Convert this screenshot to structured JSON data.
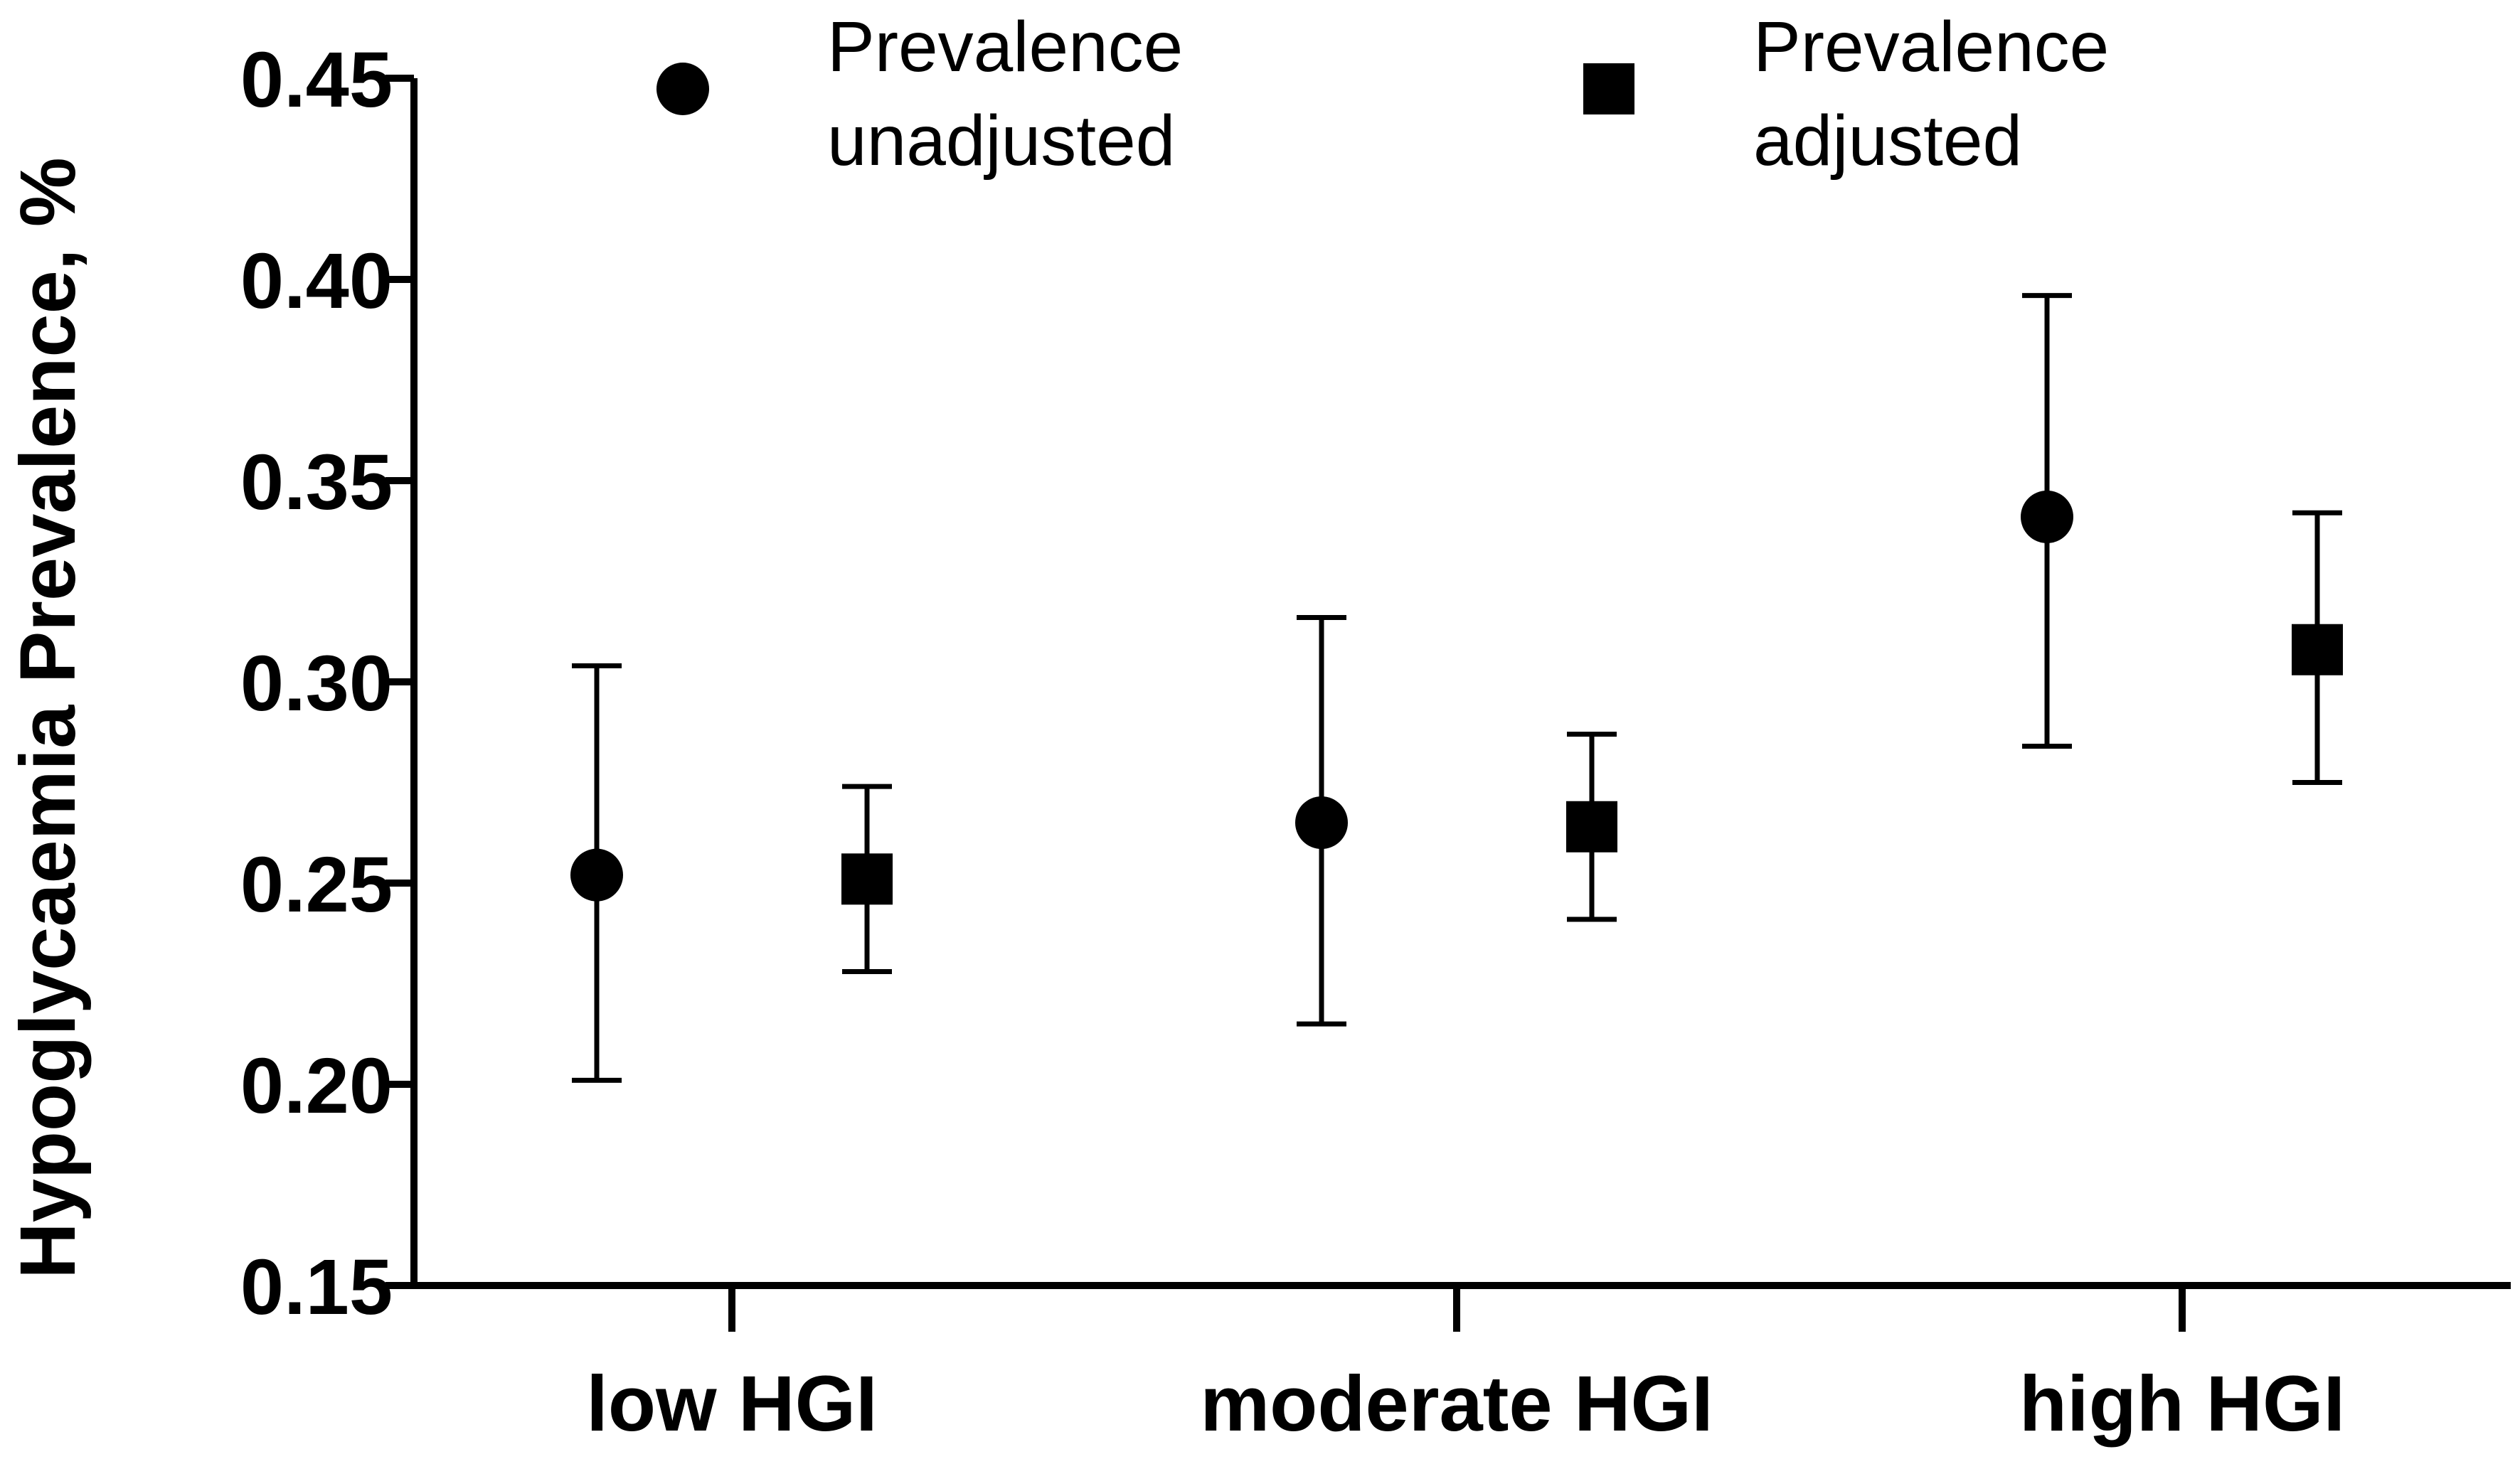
{
  "chart_data": {
    "type": "scatter",
    "title": "",
    "xlabel": "",
    "ylabel": "Hypoglycaemia Prevalence, %",
    "ylim": [
      0.15,
      0.45
    ],
    "yticks": [
      0.15,
      0.2,
      0.25,
      0.3,
      0.35,
      0.4,
      0.45
    ],
    "ytick_labels": [
      "0.15",
      "0.20",
      "0.25",
      "0.30",
      "0.35",
      "0.40",
      "0.45"
    ],
    "categories": [
      "low HGI",
      "moderate HGI",
      "high HGI"
    ],
    "grid": false,
    "legend_position": "top",
    "series": [
      {
        "name": "Prevalence unadjusted",
        "legend_lines": [
          "Prevalence",
          "unadjusted"
        ],
        "marker": "circle",
        "color": "#000000",
        "values": [
          0.252,
          0.265,
          0.341
        ],
        "ci_lower": [
          0.201,
          0.215,
          0.284
        ],
        "ci_upper": [
          0.304,
          0.316,
          0.396
        ]
      },
      {
        "name": "Prevalence adjusted",
        "legend_lines": [
          "Prevalence",
          "adjusted"
        ],
        "marker": "square",
        "color": "#000000",
        "values": [
          0.251,
          0.264,
          0.308
        ],
        "ci_lower": [
          0.228,
          0.241,
          0.275
        ],
        "ci_upper": [
          0.274,
          0.287,
          0.342
        ]
      }
    ]
  }
}
